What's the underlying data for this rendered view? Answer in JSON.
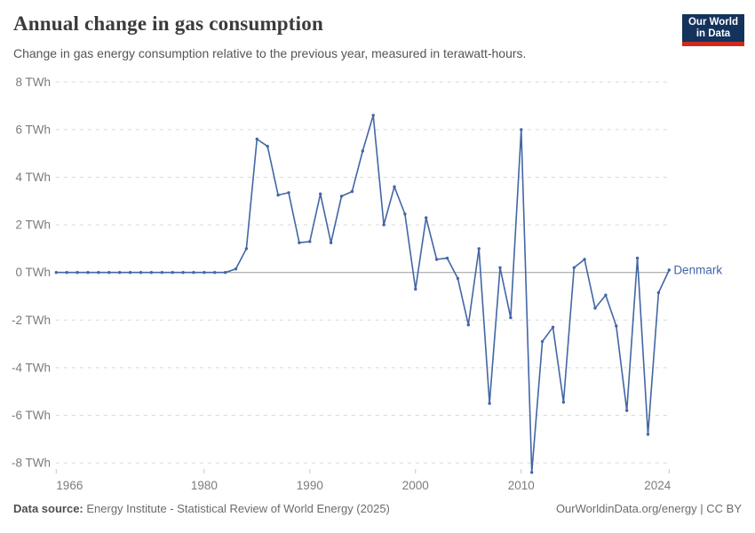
{
  "header": {
    "title": "Annual change in gas consumption",
    "subtitle": "Change in gas energy consumption relative to the previous year, measured in terawatt-hours.",
    "logo": {
      "line1": "Our World",
      "line2": "in Data"
    }
  },
  "chart_data": {
    "type": "line",
    "title": "Annual change in gas consumption",
    "unit": "TWh",
    "xlabel": "",
    "ylabel": "",
    "xlim": [
      1966,
      2024
    ],
    "ylim": [
      -8.5,
      8
    ],
    "grid": "horizontal-dashed",
    "legend_position": "end-of-line-label",
    "entity_label": "Denmark",
    "series": [
      {
        "name": "Denmark",
        "years": [
          1966,
          1967,
          1968,
          1969,
          1970,
          1971,
          1972,
          1973,
          1974,
          1975,
          1976,
          1977,
          1978,
          1979,
          1980,
          1981,
          1982,
          1983,
          1984,
          1985,
          1986,
          1987,
          1988,
          1989,
          1990,
          1991,
          1992,
          1993,
          1994,
          1995,
          1996,
          1997,
          1998,
          1999,
          2000,
          2001,
          2002,
          2003,
          2004,
          2005,
          2006,
          2007,
          2008,
          2009,
          2010,
          2011,
          2012,
          2013,
          2014,
          2015,
          2016,
          2017,
          2018,
          2019,
          2020,
          2021,
          2022,
          2023,
          2024
        ],
        "values": [
          0,
          0,
          0,
          0,
          0,
          0,
          0,
          0,
          0,
          0,
          0,
          0,
          0,
          0,
          0,
          0,
          0,
          0.15,
          1.0,
          5.6,
          5.3,
          3.25,
          3.35,
          1.25,
          1.3,
          3.3,
          1.25,
          3.2,
          3.4,
          5.1,
          6.6,
          2.0,
          3.6,
          2.45,
          -0.7,
          2.3,
          0.55,
          0.6,
          -0.25,
          -2.2,
          1.0,
          -5.5,
          0.2,
          -1.9,
          6.0,
          -8.4,
          -2.9,
          -2.3,
          -5.45,
          0.2,
          0.55,
          -1.5,
          -0.95,
          -2.25,
          -5.8,
          0.6,
          -6.8,
          -0.85,
          0.1
        ]
      }
    ],
    "y_ticks": [
      {
        "value": 8,
        "label": "8 TWh"
      },
      {
        "value": 6,
        "label": "6 TWh"
      },
      {
        "value": 4,
        "label": "4 TWh"
      },
      {
        "value": 2,
        "label": "2 TWh"
      },
      {
        "value": 0,
        "label": "0 TWh"
      },
      {
        "value": -2,
        "label": "-2 TWh"
      },
      {
        "value": -4,
        "label": "-4 TWh"
      },
      {
        "value": -6,
        "label": "-6 TWh"
      },
      {
        "value": -8,
        "label": "-8 TWh"
      }
    ],
    "x_ticks": [
      {
        "value": 1966,
        "label": "1966",
        "align": "left"
      },
      {
        "value": 1980,
        "label": "1980",
        "align": "center"
      },
      {
        "value": 1990,
        "label": "1990",
        "align": "center"
      },
      {
        "value": 2000,
        "label": "2000",
        "align": "center"
      },
      {
        "value": 2010,
        "label": "2010",
        "align": "center"
      },
      {
        "value": 2024,
        "label": "2024",
        "align": "right"
      }
    ]
  },
  "footer": {
    "source_prefix": "Data source:",
    "source_rest": " Energy Institute - Statistical Review of World Energy (2025)",
    "credit": "OurWorldinData.org/energy | CC BY"
  },
  "colors": {
    "line": "#4266a5",
    "grid": "#d9d9d9",
    "zero_line": "#9b9b9b",
    "tick": "#c6c6c6",
    "axis_text": "#7c7c7c",
    "title": "#3b3b3b",
    "subtitle": "#555555",
    "footer": "#6b6b6b",
    "footer_bold": "#4f4f4f",
    "logo_bg": "#14335c",
    "logo_bar": "#cc2b1e"
  }
}
